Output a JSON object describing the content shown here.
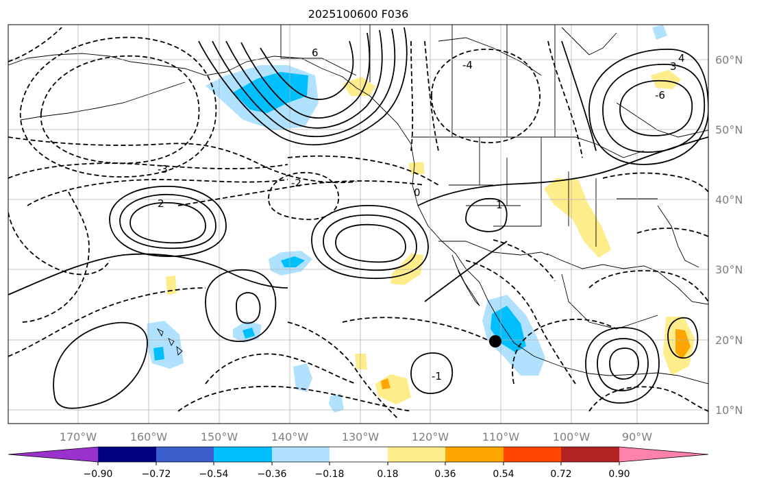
{
  "title": "2025100600 F036",
  "map": {
    "lon_labels": [
      "170°W",
      "160°W",
      "150°W",
      "140°W",
      "130°W",
      "120°W",
      "110°W",
      "100°W",
      "90°W"
    ],
    "lat_labels": [
      "60°N",
      "50°N",
      "40°N",
      "30°N",
      "20°N",
      "10°N"
    ],
    "lon_range": [
      -180,
      -80
    ],
    "lat_range": [
      8,
      65
    ],
    "contour_labels": [
      "6",
      "4",
      "3",
      "2",
      "1",
      "0",
      "-1",
      "-2",
      "-3",
      "-4",
      "-6"
    ]
  },
  "colorbar": {
    "ticks": [
      "−0.90",
      "−0.72",
      "−0.54",
      "−0.36",
      "−0.18",
      "0.18",
      "0.36",
      "0.54",
      "0.72",
      "0.90"
    ],
    "colors": {
      "under": "#9932cc",
      "b1": "#000080",
      "b2": "#3a5fcd",
      "b3": "#00bfff",
      "b4": "#b0e2ff",
      "b5": "#ffffff",
      "b6": "#ffec8b",
      "b7": "#ffa500",
      "b8": "#ff4500",
      "b9": "#b22222",
      "over": "#ff82ab"
    }
  },
  "marker": {
    "name": "storm-center",
    "lon": -110,
    "lat": 20
  }
}
